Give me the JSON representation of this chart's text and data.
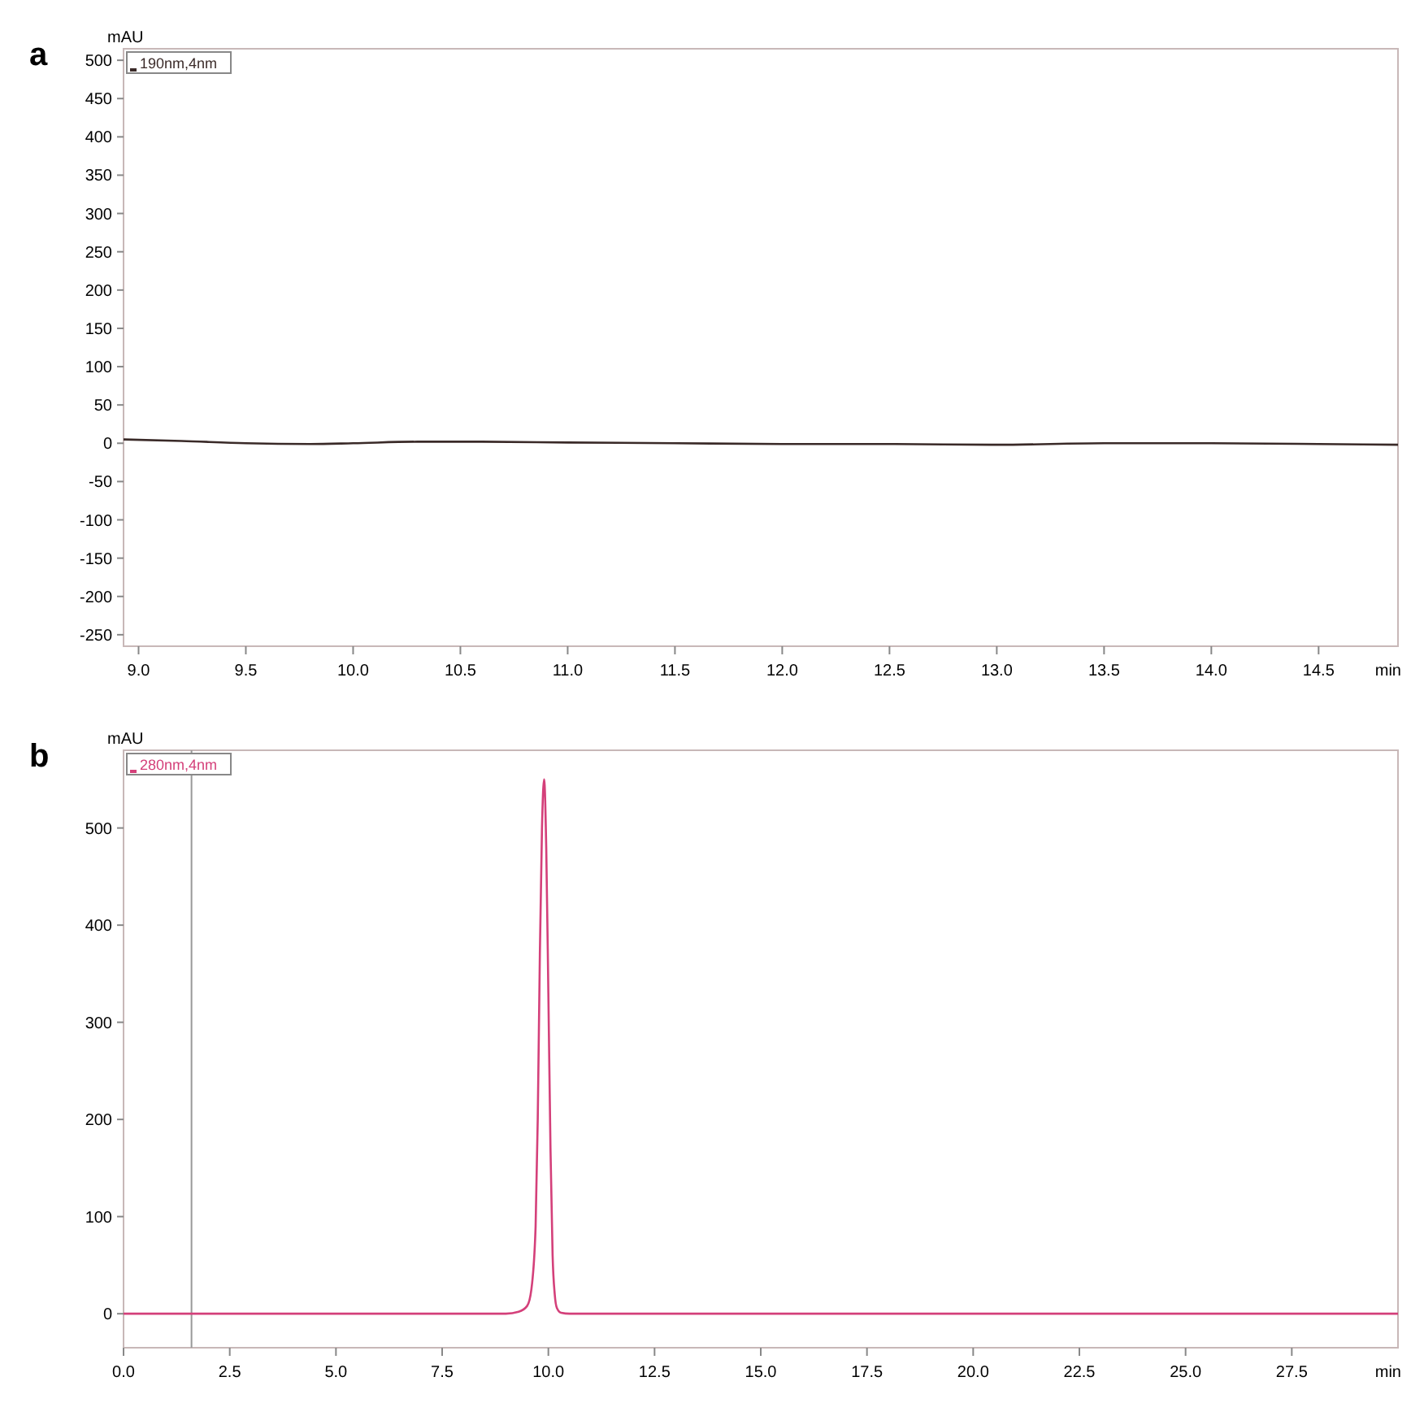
{
  "chart_data": [
    {
      "type": "line",
      "title": "a",
      "ylabel": "mAU",
      "xlabel": "min",
      "legend": "top left",
      "grid": false,
      "xlim": [
        8.93,
        14.87
      ],
      "ylim": [
        -265,
        515
      ],
      "xticks": [
        {
          "value": 9,
          "label": "9.0"
        },
        {
          "value": 9.5,
          "label": "9.5"
        },
        {
          "value": 10,
          "label": "10.0"
        },
        {
          "value": 10.5,
          "label": "10.5"
        },
        {
          "value": 11,
          "label": "11.0"
        },
        {
          "value": 11.5,
          "label": "11.5"
        },
        {
          "value": 12,
          "label": "12.0"
        },
        {
          "value": 12.5,
          "label": "12.5"
        },
        {
          "value": 13,
          "label": "13.0"
        },
        {
          "value": 13.5,
          "label": "13.5"
        },
        {
          "value": 14,
          "label": "14.0"
        },
        {
          "value": 14.5,
          "label": "14.5"
        }
      ],
      "yticks": [
        -250,
        -200,
        -150,
        -100,
        -50,
        0,
        50,
        100,
        150,
        200,
        250,
        300,
        350,
        400,
        450,
        500
      ],
      "series": [
        {
          "name": "190nm,4nm",
          "color": "#3a2a28",
          "x": [
            8.93,
            9.2,
            9.5,
            9.8,
            10.0,
            10.3,
            10.6,
            11.0,
            11.5,
            12.0,
            12.5,
            13.0,
            13.5,
            14.0,
            14.5,
            14.87
          ],
          "values": [
            5,
            3,
            0,
            -1,
            0,
            2,
            2,
            1,
            0,
            -1,
            -1,
            -2,
            0,
            0,
            -1,
            -2
          ]
        }
      ]
    },
    {
      "type": "line",
      "title": "b",
      "ylabel": "mAU",
      "xlabel": "min",
      "legend": "top left",
      "grid": false,
      "xlim": [
        0,
        30
      ],
      "ylim": [
        -35,
        580
      ],
      "xticks": [
        {
          "value": 0,
          "label": "0.0"
        },
        {
          "value": 2.5,
          "label": "2.5"
        },
        {
          "value": 5,
          "label": "5.0"
        },
        {
          "value": 7.5,
          "label": "7.5"
        },
        {
          "value": 10,
          "label": "10.0"
        },
        {
          "value": 12.5,
          "label": "12.5"
        },
        {
          "value": 15,
          "label": "15.0"
        },
        {
          "value": 17.5,
          "label": "17.5"
        },
        {
          "value": 20,
          "label": "20.0"
        },
        {
          "value": 22.5,
          "label": "22.5"
        },
        {
          "value": 25,
          "label": "25.0"
        },
        {
          "value": 27.5,
          "label": "27.5"
        }
      ],
      "yticks": [
        0,
        100,
        200,
        300,
        400,
        500
      ],
      "ref_lines": [
        {
          "axis": "x",
          "value": 1.6,
          "color": "#999999"
        }
      ],
      "series": [
        {
          "name": "280nm,4nm",
          "color": "#d4407a",
          "x": [
            0,
            5,
            9.0,
            9.3,
            9.5,
            9.6,
            9.7,
            9.75,
            9.8,
            9.85,
            9.9,
            9.95,
            10.0,
            10.05,
            10.1,
            10.15,
            10.2,
            10.3,
            10.5,
            15,
            20,
            25,
            30
          ],
          "values": [
            0,
            0,
            0,
            2,
            8,
            25,
            90,
            200,
            370,
            500,
            550,
            480,
            330,
            170,
            60,
            20,
            6,
            1,
            0,
            0,
            0,
            0,
            0
          ]
        }
      ]
    }
  ]
}
